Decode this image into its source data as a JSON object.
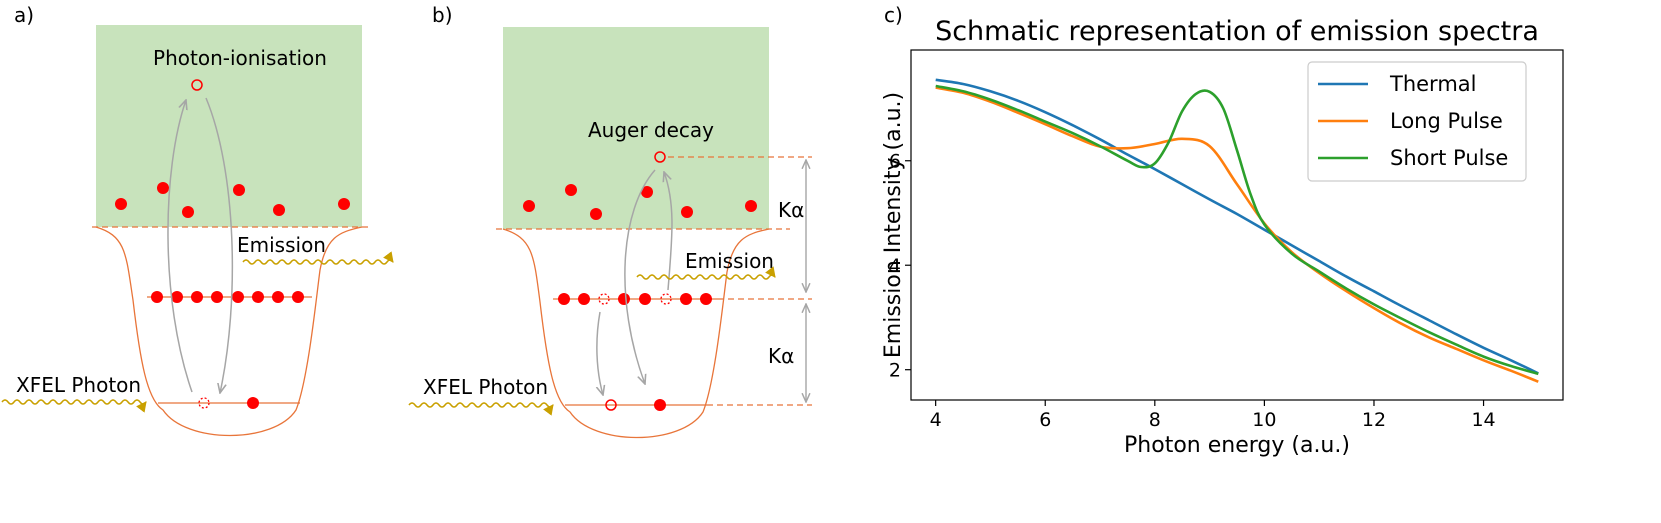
{
  "panel_a": {
    "label": "a)",
    "photon_ionisation": "Photon-ionisation",
    "emission": "Emission",
    "xfel_photon": "XFEL Photon"
  },
  "panel_b": {
    "label": "b)",
    "auger_decay": "Auger decay",
    "emission": "Emission",
    "xfel_photon": "XFEL Photon",
    "k_alpha_upper": "Kα",
    "k_alpha_lower": "Kα"
  },
  "panel_c": {
    "label": "c)"
  },
  "colors": {
    "continuum": "#c8e3bc",
    "electron": "#ff0000",
    "potential": "#e8753a",
    "photon": "#c9a000",
    "arrow": "#a6a6a6",
    "thermal": "#1f77b4",
    "long_pulse": "#ff7f0e",
    "short_pulse": "#2ca02c"
  },
  "chart_data": {
    "type": "line",
    "title": "Schmatic representation of emission spectra",
    "xlabel": "Photon energy (a.u.)",
    "ylabel": "Emission Intensity (a.u.)",
    "xlim": [
      3.55,
      15.45
    ],
    "ylim": [
      1.42,
      8.12
    ],
    "xticks": [
      4,
      6,
      8,
      10,
      12,
      14
    ],
    "yticks": [
      2,
      4,
      6
    ],
    "legend_position": "top-right",
    "series": [
      {
        "name": "Thermal",
        "x": [
          4,
          4.5,
          5,
          5.5,
          6,
          6.5,
          7,
          7.5,
          8,
          8.5,
          9,
          9.5,
          10,
          10.5,
          11,
          11.5,
          12,
          12.5,
          13,
          13.5,
          14,
          14.5,
          15
        ],
        "y": [
          7.55,
          7.47,
          7.33,
          7.15,
          6.93,
          6.68,
          6.41,
          6.12,
          5.84,
          5.55,
          5.26,
          4.98,
          4.68,
          4.38,
          4.08,
          3.78,
          3.5,
          3.22,
          2.95,
          2.68,
          2.42,
          2.18,
          1.93
        ]
      },
      {
        "name": "Long Pulse",
        "x": [
          4,
          4.5,
          5,
          5.5,
          6,
          6.5,
          7,
          7.5,
          8,
          8.5,
          9,
          9.5,
          10,
          10.5,
          11,
          11.5,
          12,
          12.5,
          13,
          13.5,
          14,
          14.5,
          15
        ],
        "y": [
          7.4,
          7.3,
          7.13,
          6.92,
          6.7,
          6.47,
          6.27,
          6.24,
          6.32,
          6.42,
          6.28,
          5.55,
          4.8,
          4.25,
          3.85,
          3.5,
          3.18,
          2.88,
          2.62,
          2.4,
          2.18,
          1.98,
          1.77
        ]
      },
      {
        "name": "Short Pulse",
        "x": [
          4,
          4.5,
          5,
          5.5,
          6,
          6.5,
          7,
          7.5,
          7.75,
          8,
          8.25,
          8.5,
          8.75,
          9,
          9.25,
          9.5,
          9.75,
          10,
          10.5,
          11,
          11.5,
          12,
          12.5,
          13,
          13.5,
          14,
          14.5,
          15
        ],
        "y": [
          7.43,
          7.33,
          7.17,
          6.97,
          6.75,
          6.53,
          6.28,
          6.0,
          5.88,
          5.95,
          6.35,
          6.95,
          7.28,
          7.32,
          7.0,
          6.2,
          5.35,
          4.78,
          4.22,
          3.88,
          3.55,
          3.25,
          2.98,
          2.72,
          2.48,
          2.25,
          2.07,
          1.92
        ]
      }
    ]
  }
}
